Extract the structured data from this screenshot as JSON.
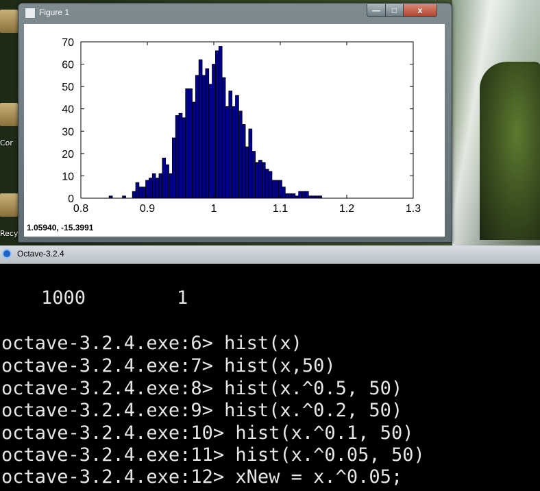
{
  "desktop": {
    "icon_labels": [
      "Cor",
      "Recy"
    ]
  },
  "figure_window": {
    "title": "Figure 1",
    "buttons": {
      "minimize": "—",
      "maximize": "□",
      "close": "x"
    },
    "status": "1.05940, -15.3991"
  },
  "chart_data": {
    "type": "bar",
    "title": "",
    "xlabel": "",
    "ylabel": "",
    "xlim": [
      0.8,
      1.3
    ],
    "ylim": [
      0,
      70
    ],
    "x_ticks": [
      "0.8",
      "0.9",
      "1",
      "1.1",
      "1.2",
      "1.3"
    ],
    "y_ticks": [
      "0",
      "10",
      "20",
      "30",
      "40",
      "50",
      "60",
      "70"
    ],
    "bar_color": "#00008b",
    "bin_centers": [
      0.845,
      0.865,
      0.875,
      0.88,
      0.885,
      0.89,
      0.895,
      0.9,
      0.905,
      0.91,
      0.915,
      0.92,
      0.925,
      0.93,
      0.935,
      0.94,
      0.945,
      0.95,
      0.955,
      0.96,
      0.965,
      0.97,
      0.975,
      0.98,
      0.985,
      0.99,
      0.995,
      1.0,
      1.005,
      1.01,
      1.015,
      1.02,
      1.025,
      1.03,
      1.035,
      1.04,
      1.045,
      1.05,
      1.055,
      1.06,
      1.065,
      1.07,
      1.075,
      1.08,
      1.085,
      1.09,
      1.095,
      1.1,
      1.105,
      1.11,
      1.115,
      1.12,
      1.125,
      1.13,
      1.135,
      1.14,
      1.145,
      1.15,
      1.155,
      1.16,
      1.165,
      1.17,
      1.175
    ],
    "values": [
      1,
      1,
      0,
      3,
      7,
      5,
      5,
      8,
      9,
      11,
      9,
      11,
      18,
      15,
      11,
      27,
      37,
      38,
      36,
      49,
      49,
      43,
      55,
      62,
      55,
      58,
      51,
      60,
      66,
      68,
      54,
      41,
      48,
      41,
      46,
      39,
      33,
      23,
      31,
      21,
      16,
      17,
      16,
      13,
      12,
      8,
      8,
      8,
      5,
      2,
      2,
      2,
      1,
      3,
      3,
      3,
      1,
      1,
      1,
      1,
      0,
      0,
      0
    ]
  },
  "terminal": {
    "window_title": "Octave-3.2.4",
    "output_values": [
      "1000",
      "1"
    ],
    "lines": [
      "octave-3.2.4.exe:6> hist(x)",
      "octave-3.2.4.exe:7> hist(x,50)",
      "octave-3.2.4.exe:8> hist(x.^0.5, 50)",
      "octave-3.2.4.exe:9> hist(x.^0.2, 50)",
      "octave-3.2.4.exe:10> hist(x.^0.1, 50)",
      "octave-3.2.4.exe:11> hist(x.^0.05, 50)",
      "octave-3.2.4.exe:12> xNew = x.^0.05;"
    ]
  }
}
